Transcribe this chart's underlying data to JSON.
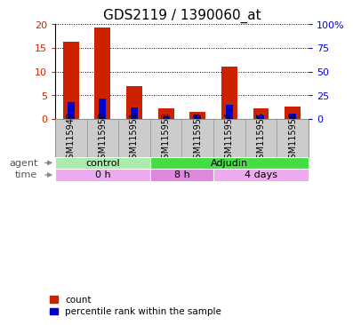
{
  "title": "GDS2119 / 1390060_at",
  "samples": [
    "GSM115949",
    "GSM115950",
    "GSM115951",
    "GSM115952",
    "GSM115953",
    "GSM115954",
    "GSM115955",
    "GSM115956"
  ],
  "count_values": [
    16.3,
    19.2,
    7.0,
    2.2,
    1.4,
    11.0,
    2.3,
    2.6
  ],
  "percentile_values": [
    17.5,
    21.0,
    12.5,
    3.0,
    4.0,
    14.5,
    3.5,
    5.5
  ],
  "left_ylim": [
    0,
    20
  ],
  "right_ylim": [
    0,
    100
  ],
  "left_yticks": [
    0,
    5,
    10,
    15,
    20
  ],
  "right_yticks": [
    0,
    25,
    50,
    75,
    100
  ],
  "right_yticklabels": [
    "0",
    "25",
    "50",
    "75",
    "100%"
  ],
  "left_yticklabels": [
    "0",
    "5",
    "10",
    "15",
    "20"
  ],
  "count_color": "#CC2200",
  "percentile_color": "#0000CC",
  "agent_groups": [
    {
      "label": "control",
      "start": 0,
      "end": 3,
      "color": "#AAEAAA"
    },
    {
      "label": "Adjudin",
      "start": 3,
      "end": 8,
      "color": "#44DD44"
    }
  ],
  "time_groups": [
    {
      "label": "0 h",
      "start": 0,
      "end": 3,
      "color": "#EEAAEE"
    },
    {
      "label": "8 h",
      "start": 3,
      "end": 5,
      "color": "#DD88DD"
    },
    {
      "label": "4 days",
      "start": 5,
      "end": 8,
      "color": "#EEAAEE"
    }
  ],
  "agent_label": "agent",
  "time_label": "time",
  "legend_count": "count",
  "legend_percentile": "percentile rank within the sample",
  "grid_color": "#000000",
  "bg_color": "#FFFFFF",
  "tick_label_color_left": "#CC2200",
  "tick_label_color_right": "#0000CC",
  "sample_bg_color": "#CCCCCC",
  "title_fontsize": 11,
  "tick_fontsize": 8,
  "sample_fontsize": 7,
  "row_fontsize": 8,
  "legend_fontsize": 7.5
}
